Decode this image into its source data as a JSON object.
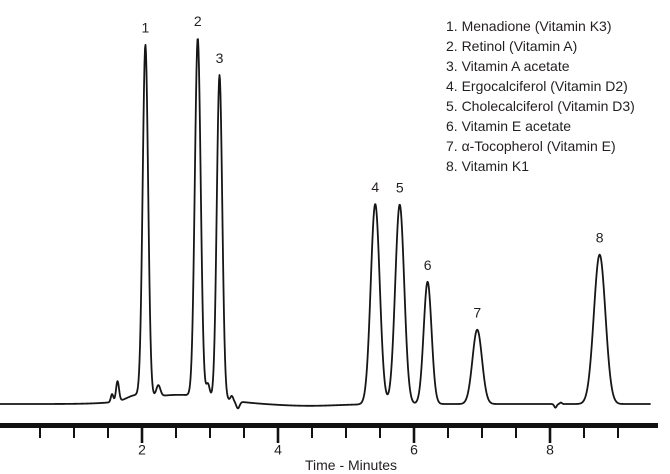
{
  "legend": {
    "items": [
      "1. Menadione (Vitamin K3)",
      "2. Retinol (Vitamin A)",
      "3. Vitamin A acetate",
      "4. Ergocalciferol (Vitamin D2)",
      "5. Cholecalciferol (Vitamin D3)",
      "6. Vitamin E acetate",
      "7. α-Tocopherol (Vitamin E)",
      "8. Vitamin K1"
    ]
  },
  "chart_data": {
    "type": "line",
    "kind": "chromatogram",
    "title": "",
    "xlabel": "Time - Minutes",
    "x_axis": {
      "min": 0,
      "max": 9.6,
      "minor_tick_start": 0.5,
      "minor_tick_step": 0.5,
      "minor_tick_end": 9.0,
      "labeled_ticks": [
        2,
        4,
        6,
        8
      ]
    },
    "peaks": [
      {
        "number": "1",
        "name": "Menadione (Vitamin K3)",
        "retention_time_min": 2.05,
        "relative_height": 0.96,
        "sigma_min": 0.04
      },
      {
        "number": "2",
        "name": "Retinol (Vitamin A)",
        "retention_time_min": 2.82,
        "relative_height": 0.978,
        "sigma_min": 0.043
      },
      {
        "number": "3",
        "name": "Vitamin A acetate",
        "retention_time_min": 3.14,
        "relative_height": 0.885,
        "sigma_min": 0.04
      },
      {
        "number": "4",
        "name": "Ergocalciferol (Vitamin D2)",
        "retention_time_min": 5.43,
        "relative_height": 0.547,
        "sigma_min": 0.066
      },
      {
        "number": "5",
        "name": "Cholecalciferol (Vitamin D3)",
        "retention_time_min": 5.79,
        "relative_height": 0.545,
        "sigma_min": 0.066
      },
      {
        "number": "6",
        "name": "Vitamin E acetate",
        "retention_time_min": 6.2,
        "relative_height": 0.334,
        "sigma_min": 0.058
      },
      {
        "number": "7",
        "name": "α-Tocopherol (Vitamin E)",
        "retention_time_min": 6.93,
        "relative_height": 0.203,
        "sigma_min": 0.07
      },
      {
        "number": "8",
        "name": "Vitamin K1",
        "retention_time_min": 8.73,
        "relative_height": 0.408,
        "sigma_min": 0.085
      }
    ],
    "baseline_features": [
      {
        "t": 1.56,
        "h": 0.022,
        "sigma": 0.018
      },
      {
        "t": 1.64,
        "h": 0.055,
        "sigma": 0.022
      },
      {
        "t": 1.9,
        "h": 0.012,
        "sigma": 0.12
      },
      {
        "t": 2.55,
        "h": 0.025,
        "sigma": 0.55
      },
      {
        "t": 2.24,
        "h": 0.03,
        "sigma": 0.03
      },
      {
        "t": 2.97,
        "h": 0.036,
        "sigma": 0.025
      },
      {
        "t": 3.32,
        "h": 0.013,
        "sigma": 0.02
      },
      {
        "t": 3.41,
        "h": -0.019,
        "sigma": 0.025
      },
      {
        "t": 4.45,
        "h": -0.005,
        "sigma": 0.45
      },
      {
        "t": 8.08,
        "h": -0.01,
        "sigma": 0.018
      },
      {
        "t": 8.16,
        "h": 0.004,
        "sigma": 0.015
      }
    ]
  },
  "colors": {
    "trace": "#161616",
    "axis": "#111111",
    "text": "#231f20",
    "background": "#ffffff"
  }
}
